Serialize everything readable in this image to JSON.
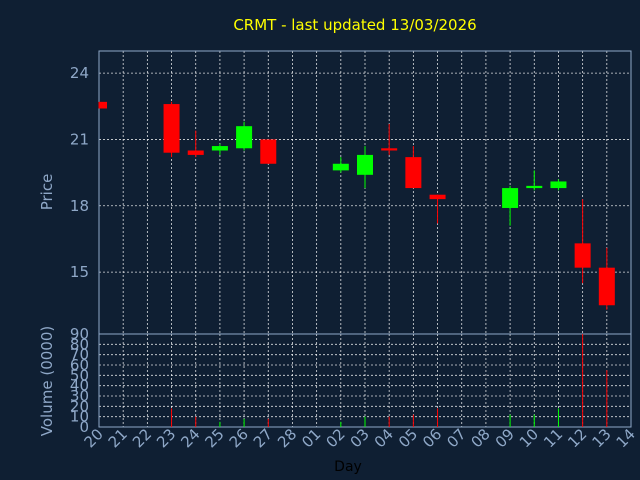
{
  "chart_data": {
    "type": "candlestick",
    "title": "CRMT - last updated 13/03/2026",
    "xlabel": "Day",
    "price_ylabel": "Price",
    "volume_ylabel": "Volume (0000)",
    "x_ticks": [
      "20",
      "21",
      "22",
      "23",
      "24",
      "25",
      "26",
      "27",
      "28",
      "01",
      "02",
      "03",
      "04",
      "05",
      "06",
      "07",
      "08",
      "09",
      "10",
      "11",
      "12",
      "13",
      "14"
    ],
    "price_ylim": [
      12.2,
      25.0
    ],
    "price_yticks": [
      "15",
      "18",
      "21",
      "24"
    ],
    "volume_ylim": [
      0,
      90
    ],
    "volume_yticks": [
      "0",
      "10",
      "20",
      "30",
      "40",
      "50",
      "60",
      "70",
      "80",
      "90"
    ],
    "grid": true,
    "colors": {
      "up": "#00ff00",
      "down": "#ff0000",
      "title": "#ffff00",
      "axis": "#8fa8c8"
    },
    "candles": [
      {
        "x": "20",
        "open": 22.7,
        "close": 22.4,
        "high": 22.7,
        "low": 22.4,
        "volume": 0
      },
      {
        "x": "23",
        "open": 22.6,
        "close": 20.4,
        "high": 22.7,
        "low": 20.2,
        "volume": 18
      },
      {
        "x": "24",
        "open": 20.5,
        "close": 20.3,
        "high": 21.4,
        "low": 20.2,
        "volume": 10
      },
      {
        "x": "25",
        "open": 20.5,
        "close": 20.7,
        "high": 20.8,
        "low": 20.3,
        "volume": 5
      },
      {
        "x": "26",
        "open": 20.6,
        "close": 21.6,
        "high": 21.8,
        "low": 20.5,
        "volume": 8
      },
      {
        "x": "27",
        "open": 21.0,
        "close": 19.9,
        "high": 21.0,
        "low": 19.9,
        "volume": 8
      },
      {
        "x": "02",
        "open": 19.6,
        "close": 19.9,
        "high": 20.2,
        "low": 19.5,
        "volume": 5
      },
      {
        "x": "03",
        "open": 19.4,
        "close": 20.3,
        "high": 20.7,
        "low": 18.8,
        "volume": 10
      },
      {
        "x": "04",
        "open": 20.6,
        "close": 20.5,
        "high": 21.7,
        "low": 20.3,
        "volume": 10
      },
      {
        "x": "05",
        "open": 20.2,
        "close": 18.8,
        "high": 20.7,
        "low": 18.8,
        "volume": 12
      },
      {
        "x": "06",
        "open": 18.5,
        "close": 18.3,
        "high": 18.5,
        "low": 17.2,
        "volume": 18
      },
      {
        "x": "09",
        "open": 17.9,
        "close": 18.8,
        "high": 18.9,
        "low": 17.1,
        "volume": 12
      },
      {
        "x": "10",
        "open": 18.8,
        "close": 18.9,
        "high": 19.6,
        "low": 18.7,
        "volume": 12
      },
      {
        "x": "11",
        "open": 18.8,
        "close": 19.1,
        "high": 19.2,
        "low": 18.7,
        "volume": 18
      },
      {
        "x": "12",
        "open": 16.3,
        "close": 15.2,
        "high": 18.3,
        "low": 14.5,
        "volume": 90
      },
      {
        "x": "13",
        "open": 15.2,
        "close": 13.5,
        "high": 16.1,
        "low": 13.3,
        "volume": 55
      }
    ]
  }
}
